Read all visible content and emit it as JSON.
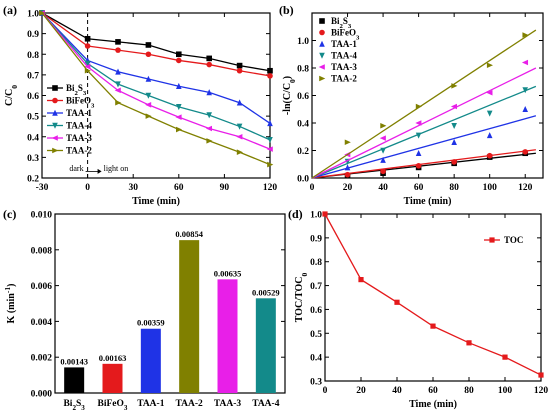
{
  "chart_data": [
    {
      "panel": "(a)",
      "type": "line",
      "xlabel": "Time (min)",
      "ylabel": "C/C",
      "ylabel_sub": "0",
      "xlim": [
        -30,
        120
      ],
      "ylim": [
        0.2,
        1.0
      ],
      "xticks": [
        -30,
        0,
        30,
        60,
        90,
        120
      ],
      "yticks": [
        0.2,
        0.3,
        0.4,
        0.5,
        0.6,
        0.7,
        0.8,
        0.9,
        1.0
      ],
      "x": [
        -30,
        0,
        20,
        40,
        60,
        80,
        100,
        120
      ],
      "legend_position": "left",
      "annotations": {
        "dark": "dark",
        "light": "light on",
        "divider_x": 0
      },
      "series": [
        {
          "name": "Bi",
          "name_sub": "2",
          "name_rest": "S",
          "name_sub2": "3",
          "color": "#000000",
          "marker": "square",
          "values": [
            1.0,
            0.875,
            0.86,
            0.845,
            0.8,
            0.78,
            0.745,
            0.72
          ]
        },
        {
          "name": "BiFeO",
          "name_sub": "3",
          "name_rest": "",
          "name_sub2": "",
          "color": "#e41a1c",
          "marker": "circle",
          "values": [
            1.0,
            0.84,
            0.82,
            0.8,
            0.77,
            0.75,
            0.72,
            0.695
          ]
        },
        {
          "name": "TAA-1",
          "name_sub": "",
          "name_rest": "",
          "name_sub2": "",
          "color": "#1f33e6",
          "marker": "triangle-up",
          "values": [
            1.0,
            0.77,
            0.715,
            0.68,
            0.645,
            0.615,
            0.565,
            0.465
          ]
        },
        {
          "name": "TAA-4",
          "name_sub": "",
          "name_rest": "",
          "name_sub2": "",
          "color": "#138a8a",
          "marker": "triangle-down",
          "values": [
            1.0,
            0.755,
            0.655,
            0.6,
            0.545,
            0.505,
            0.45,
            0.385
          ]
        },
        {
          "name": "TAA-3",
          "name_sub": "",
          "name_rest": "",
          "name_sub2": "",
          "color": "#e81fe8",
          "marker": "triangle-left",
          "values": [
            1.0,
            0.74,
            0.625,
            0.555,
            0.495,
            0.44,
            0.4,
            0.34
          ]
        },
        {
          "name": "TAA-2",
          "name_sub": "",
          "name_rest": "",
          "name_sub2": "",
          "color": "#808000",
          "marker": "triangle-right",
          "values": [
            1.0,
            0.72,
            0.565,
            0.5,
            0.435,
            0.38,
            0.325,
            0.265
          ]
        }
      ]
    },
    {
      "panel": "(b)",
      "type": "scatter",
      "xlabel": "Time (min)",
      "ylabel": "-ln(C/C",
      "ylabel_sub": "0",
      "ylabel_end": ")",
      "xlim": [
        0,
        130
      ],
      "ylim": [
        0,
        1.2
      ],
      "xticks": [
        0,
        20,
        40,
        60,
        80,
        100,
        120
      ],
      "yticks": [
        0.0,
        0.2,
        0.4,
        0.6,
        0.8,
        1.0
      ],
      "x": [
        20,
        40,
        60,
        80,
        100,
        120
      ],
      "legend_position": "top-left",
      "series": [
        {
          "name": "Bi",
          "name_sub": "2",
          "name_rest": "S",
          "name_sub2": "3",
          "color": "#000000",
          "marker": "square",
          "slope": 0.00143,
          "values": [
            0.017,
            0.035,
            0.077,
            0.107,
            0.152,
            0.18
          ]
        },
        {
          "name": "BiFeO",
          "name_sub": "3",
          "name_rest": "",
          "name_sub2": "",
          "color": "#e41a1c",
          "marker": "circle",
          "slope": 0.00163,
          "values": [
            0.024,
            0.049,
            0.089,
            0.117,
            0.162,
            0.19
          ]
        },
        {
          "name": "TAA-1",
          "name_sub": "",
          "name_rest": "",
          "name_sub2": "",
          "color": "#1f33e6",
          "marker": "triangle-up",
          "slope": 0.00359,
          "values": [
            0.076,
            0.13,
            0.18,
            0.26,
            0.31,
            0.5
          ]
        },
        {
          "name": "TAA-4",
          "name_sub": "",
          "name_rest": "",
          "name_sub2": "",
          "color": "#138a8a",
          "marker": "triangle-down",
          "slope": 0.00529,
          "values": [
            0.12,
            0.2,
            0.31,
            0.38,
            0.47,
            0.64
          ]
        },
        {
          "name": "TAA-3",
          "name_sub": "",
          "name_rest": "",
          "name_sub2": "",
          "color": "#e81fe8",
          "marker": "triangle-left",
          "slope": 0.00635,
          "values": [
            0.17,
            0.29,
            0.4,
            0.52,
            0.62,
            0.84
          ]
        },
        {
          "name": "TAA-2",
          "name_sub": "",
          "name_rest": "",
          "name_sub2": "",
          "color": "#808000",
          "marker": "triangle-right",
          "slope": 0.00854,
          "values": [
            0.26,
            0.38,
            0.52,
            0.67,
            0.82,
            1.04
          ]
        }
      ]
    },
    {
      "panel": "(c)",
      "type": "bar",
      "ylabel": "K (min",
      "ylabel_sup": "-1",
      "ylabel_end": ")",
      "ylim": [
        0,
        0.01
      ],
      "yticks": [
        "0.000",
        "0.002",
        "0.004",
        "0.006",
        "0.008",
        "0.010"
      ],
      "categories": [
        {
          "name": "Bi",
          "name_sub": "2",
          "name_rest": "S",
          "name_sub2": "3"
        },
        {
          "name": "BiFeO",
          "name_sub": "3",
          "name_rest": "",
          "name_sub2": ""
        },
        {
          "name": "TAA-1",
          "name_sub": "",
          "name_rest": "",
          "name_sub2": ""
        },
        {
          "name": "TAA-2",
          "name_sub": "",
          "name_rest": "",
          "name_sub2": ""
        },
        {
          "name": "TAA-3",
          "name_sub": "",
          "name_rest": "",
          "name_sub2": ""
        },
        {
          "name": "TAA-4",
          "name_sub": "",
          "name_rest": "",
          "name_sub2": ""
        }
      ],
      "values": [
        0.00143,
        0.00163,
        0.00359,
        0.00854,
        0.00635,
        0.00529
      ],
      "labels": [
        "0.00143",
        "0.00163",
        "0.00359",
        "0.00854",
        "0.00635",
        "0.00529"
      ],
      "colors": [
        "#000000",
        "#e41a1c",
        "#1f33e6",
        "#808000",
        "#e81fe8",
        "#138a8a"
      ]
    },
    {
      "panel": "(d)",
      "type": "line",
      "xlabel": "Time (min)",
      "ylabel": "TOC/TOC",
      "ylabel_sub": "0",
      "xlim": [
        0,
        120
      ],
      "ylim": [
        0.3,
        1.0
      ],
      "xticks": [
        0,
        20,
        40,
        60,
        80,
        100,
        120
      ],
      "yticks": [
        0.3,
        0.4,
        0.5,
        0.6,
        0.7,
        0.8,
        0.9,
        1.0
      ],
      "legend_position": "top-right",
      "series": [
        {
          "name": "TOC",
          "color": "#e41a1c",
          "marker": "square",
          "x": [
            0,
            20,
            40,
            60,
            80,
            100,
            120
          ],
          "values": [
            1.0,
            0.725,
            0.63,
            0.53,
            0.46,
            0.4,
            0.325
          ]
        }
      ]
    }
  ]
}
